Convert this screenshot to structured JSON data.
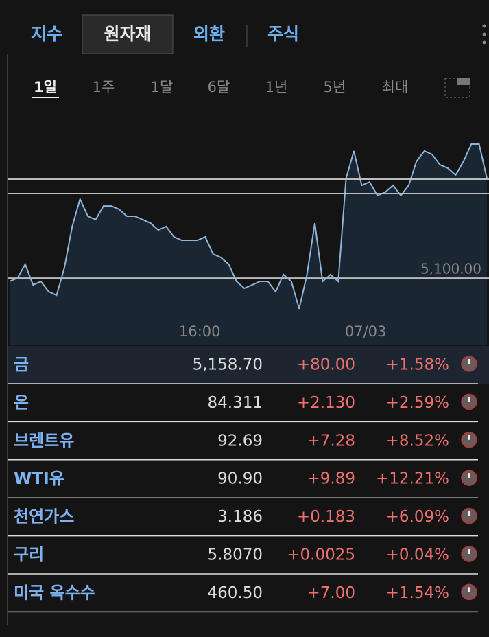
{
  "tabs": [
    "지수",
    "원자재",
    "외환",
    "주식"
  ],
  "ranges": [
    "1일",
    "1주",
    "1달",
    "6달",
    "1년",
    "5년",
    "최대"
  ],
  "chart_data": {
    "type": "line",
    "color": "#8fb4da",
    "values": [
      5098.0,
      5100.0,
      5108.2,
      5095.9,
      5098.0,
      5091.9,
      5089.8,
      5106.2,
      5130.7,
      5147.0,
      5136.8,
      5134.8,
      5142.9,
      5142.9,
      5140.9,
      5136.8,
      5136.8,
      5134.8,
      5132.7,
      5128.6,
      5130.7,
      5124.5,
      5122.5,
      5122.5,
      5122.5,
      5124.5,
      5114.3,
      5112.3,
      5108.2,
      5098.0,
      5093.9,
      5095.9,
      5098.0,
      5098.0,
      5091.9,
      5102.1,
      5098.0,
      5081.7,
      5102.1,
      5132.7,
      5098.0,
      5102.1,
      5098.0,
      5159.3,
      5175.6,
      5155.2,
      5157.2,
      5149.1,
      5151.1,
      5155.2,
      5149.1,
      5155.2,
      5169.5,
      5175.6,
      5173.6,
      5167.4,
      5165.4,
      5161.3,
      5169.5,
      5179.7,
      5179.7,
      5159.3
    ],
    "xlim": [
      0,
      61
    ],
    "xticks": [
      {
        "value": 24.3,
        "label": "16:00"
      },
      {
        "value": 45.5,
        "label": "07/03"
      }
    ],
    "ylim": [
      5060,
      5194
    ],
    "yticks": [
      {
        "value": 5100,
        "label": "5,100.00"
      }
    ]
  },
  "table": {
    "rows": [
      [
        "금",
        "5,158.70",
        "+80.00",
        "+1.58%"
      ],
      [
        "은",
        "84.311",
        "+2.130",
        "+2.59%"
      ],
      [
        "브렌트유",
        "92.69",
        "+7.28",
        "+8.52%"
      ],
      [
        "WTI유",
        "90.90",
        "+9.89",
        "+12.21%"
      ],
      [
        "천연가스",
        "3.186",
        "+0.183",
        "+6.09%"
      ],
      [
        "구리",
        "5.8070",
        "+0.0025",
        "+0.04%"
      ],
      [
        "미국 옥수수",
        "460.50",
        "+7.00",
        "+1.54%"
      ]
    ]
  }
}
